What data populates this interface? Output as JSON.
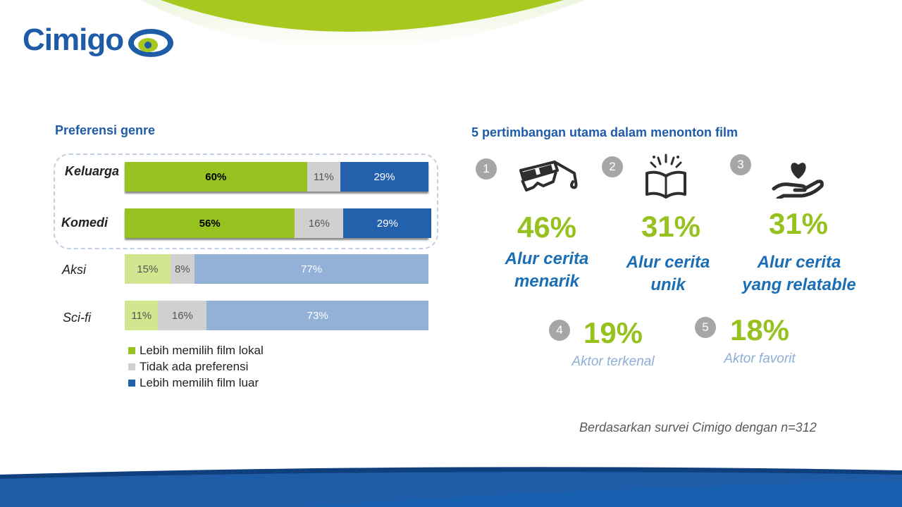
{
  "brand": {
    "name": "Cimigo"
  },
  "colors": {
    "local": "#97c21f",
    "none": "#d0d0d0",
    "foreign": "#2461ad",
    "local_light": "#d2e58f",
    "foreign_light": "#93b1d6"
  },
  "left": {
    "title": "Preferensi genre"
  },
  "chart_data": {
    "type": "bar",
    "orientation": "horizontal",
    "stacked": true,
    "categories": [
      "Keluarga",
      "Komedi",
      "Aksi",
      "Sci-fi"
    ],
    "series": [
      {
        "name": "Lebih memilih film lokal",
        "values": [
          60,
          56,
          15,
          11
        ],
        "labels": [
          "60%",
          "56%",
          "15%",
          "11%"
        ]
      },
      {
        "name": "Tidak ada preferensi",
        "values": [
          11,
          16,
          8,
          16
        ],
        "labels": [
          "11%",
          "16%",
          "8%",
          "16%"
        ]
      },
      {
        "name": "Lebih memilih film luar",
        "values": [
          29,
          29,
          77,
          73
        ],
        "labels": [
          "29%",
          "29%",
          "77%",
          "73%"
        ]
      }
    ],
    "xlim": [
      0,
      100
    ],
    "highlighted": [
      "Keluarga",
      "Komedi"
    ],
    "legend_position": "bottom"
  },
  "right": {
    "title": "5 pertimbangan utama dalam menonton film",
    "items": [
      {
        "number": "1",
        "percent": "46%",
        "label_line1": "Alur cerita",
        "label_line2": "menarik",
        "icon": "3d-glasses-icon"
      },
      {
        "number": "2",
        "percent": "31%",
        "label_line1": "Alur cerita",
        "label_line2": "unik",
        "icon": "open-book-icon"
      },
      {
        "number": "3",
        "percent": "31%",
        "label_line1": "Alur cerita",
        "label_line2": "yang relatable",
        "icon": "heart-hand-icon"
      },
      {
        "number": "4",
        "percent": "19%",
        "label": "Aktor terkenal"
      },
      {
        "number": "5",
        "percent": "18%",
        "label": "Aktor favorit"
      }
    ]
  },
  "footnote": "Berdasarkan survei Cimigo dengan n=312"
}
